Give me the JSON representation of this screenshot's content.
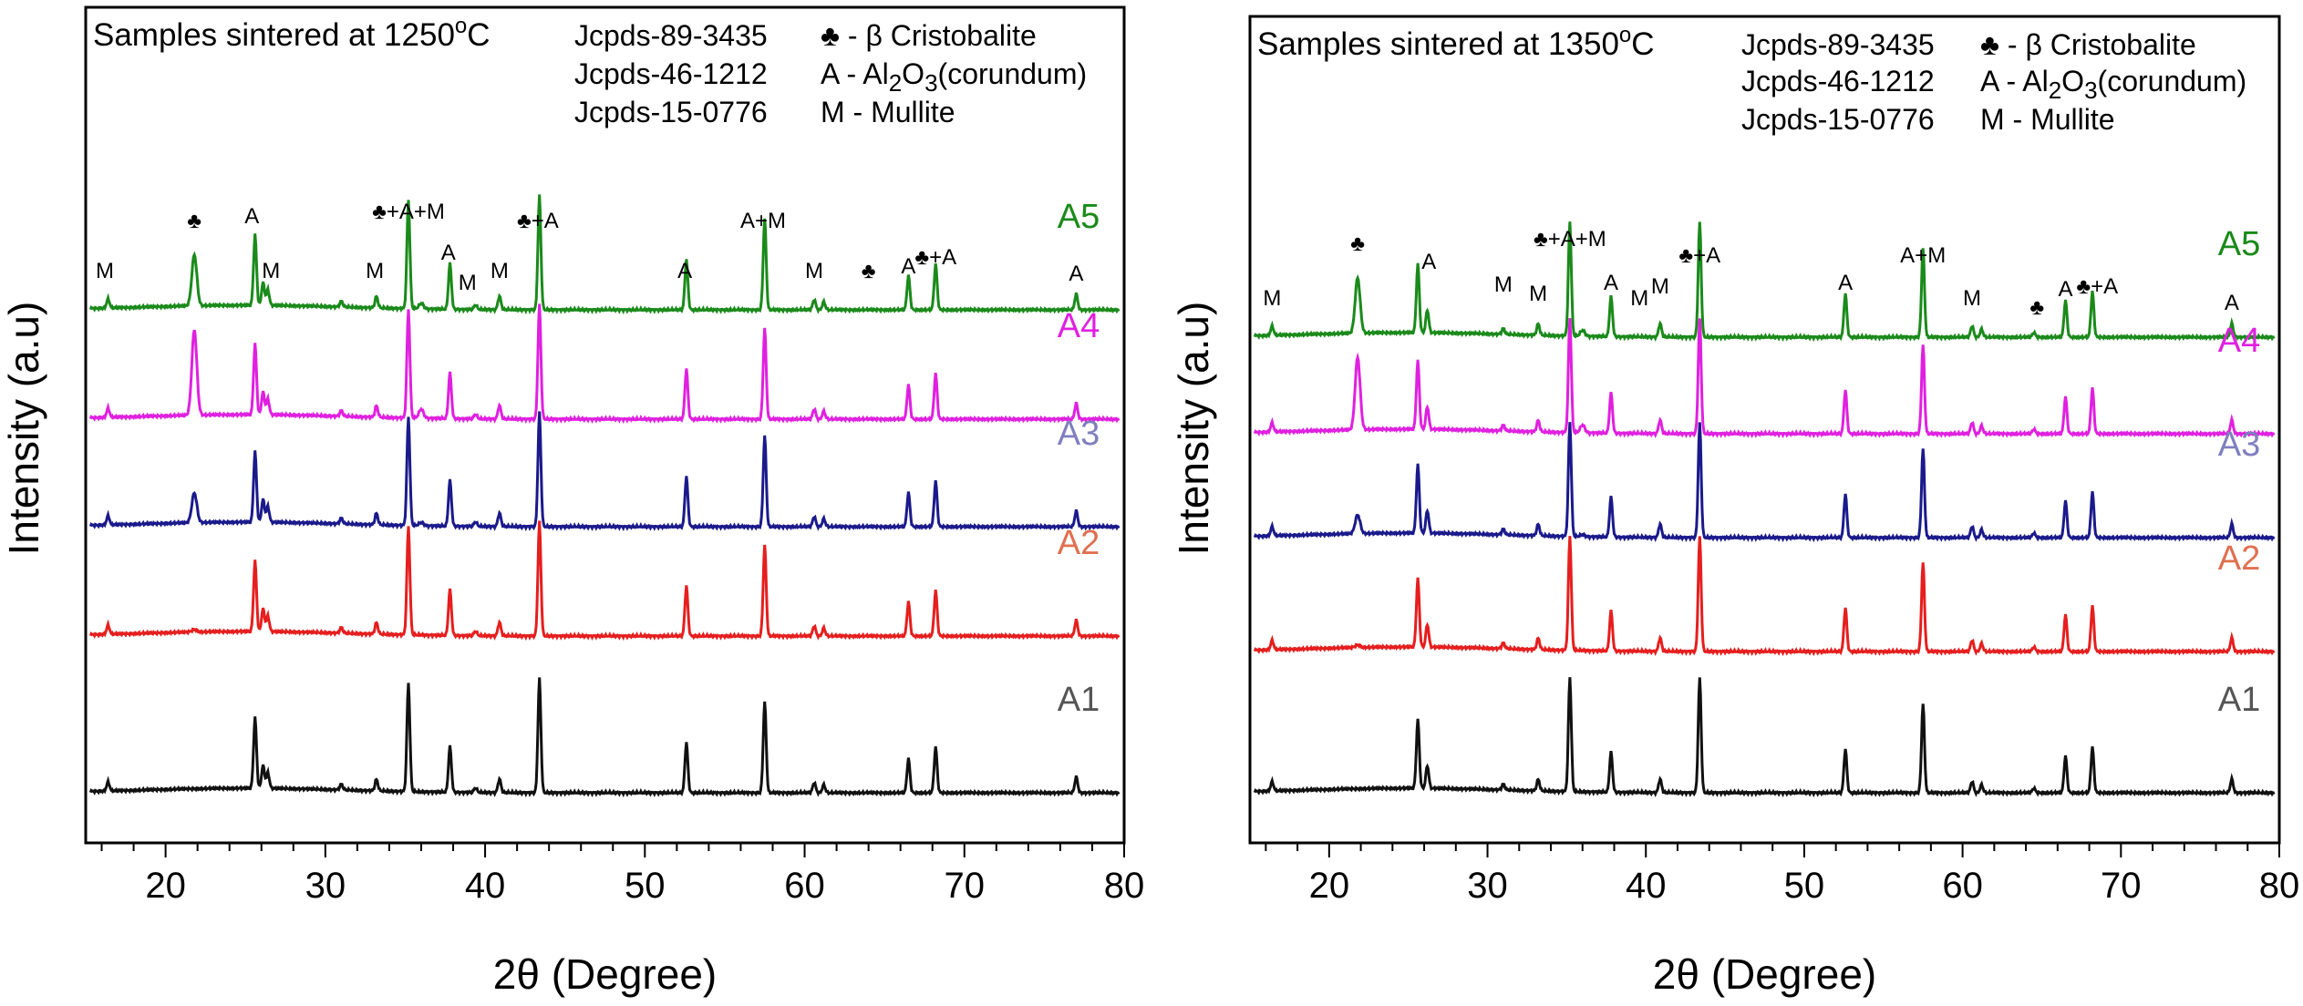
{
  "chart_data": [
    {
      "type": "line",
      "title": "Samples sintered at 1250",
      "title_sup": "o",
      "title_unit": "C",
      "xlabel": "2θ (Degree)",
      "ylabel": "Intensity (a.u)",
      "xlim": [
        15,
        80
      ],
      "xticks": [
        "20",
        "30",
        "40",
        "50",
        "60",
        "70",
        "80"
      ],
      "legend": [
        {
          "ref": "Jcpds-89-3435",
          "sym": "♣",
          "desc": " - β Cristobalite"
        },
        {
          "ref": "Jcpds-46-1212",
          "sym": "A",
          "desc": " - Al2O3(corundum)"
        },
        {
          "ref": "Jcpds-15-0776",
          "sym": "M",
          "desc": " - Mullite"
        }
      ],
      "phase_labels": [
        {
          "text": "M",
          "x": 16.2
        },
        {
          "text": "♣",
          "x": 21.8
        },
        {
          "text": "A",
          "x": 25.4
        },
        {
          "text": "M",
          "x": 26.6
        },
        {
          "text": "M",
          "x": 33.1
        },
        {
          "text": "♣+A+M",
          "x": 35.2
        },
        {
          "text": "A",
          "x": 37.7
        },
        {
          "text": "M",
          "x": 38.9
        },
        {
          "text": "M",
          "x": 40.9
        },
        {
          "text": "♣+A",
          "x": 43.3
        },
        {
          "text": "A",
          "x": 52.5
        },
        {
          "text": "A+M",
          "x": 57.4
        },
        {
          "text": "M",
          "x": 60.6
        },
        {
          "text": "♣",
          "x": 64.0
        },
        {
          "text": "A",
          "x": 66.5
        },
        {
          "text": "♣+A",
          "x": 68.2
        },
        {
          "text": "A",
          "x": 77.0
        }
      ],
      "series": [
        {
          "name": "A5",
          "color": "#1a8a1a",
          "cristobalite": 0.6
        },
        {
          "name": "A4",
          "color": "#e020e0",
          "cristobalite": 1.0
        },
        {
          "name": "A3",
          "color": "#1a1a8c",
          "cristobalite": 0.35
        },
        {
          "name": "A2",
          "color": "#e61e1e",
          "cristobalite": 0.03
        },
        {
          "name": "A1",
          "color": "#111111",
          "cristobalite": 0.0
        }
      ],
      "series_label_colors": [
        "#1a8a1a",
        "#e020e0",
        "#7f7fbf",
        "#e07050",
        "#555555"
      ],
      "peaks": [
        {
          "x": 16.4,
          "h": 8,
          "type": "M"
        },
        {
          "x": 25.6,
          "h": 62,
          "type": "A"
        },
        {
          "x": 26.1,
          "h": 20,
          "type": "M"
        },
        {
          "x": 26.4,
          "h": 14,
          "type": "M"
        },
        {
          "x": 31.0,
          "h": 5,
          "type": "M"
        },
        {
          "x": 33.2,
          "h": 10,
          "type": "M"
        },
        {
          "x": 35.2,
          "h": 95,
          "type": "A"
        },
        {
          "x": 37.8,
          "h": 40,
          "type": "A"
        },
        {
          "x": 39.4,
          "h": 4,
          "type": "M"
        },
        {
          "x": 40.9,
          "h": 12,
          "type": "M"
        },
        {
          "x": 43.4,
          "h": 100,
          "type": "A"
        },
        {
          "x": 52.6,
          "h": 44,
          "type": "A"
        },
        {
          "x": 57.5,
          "h": 80,
          "type": "A"
        },
        {
          "x": 60.6,
          "h": 9,
          "type": "M"
        },
        {
          "x": 61.2,
          "h": 7,
          "type": "M"
        },
        {
          "x": 66.5,
          "h": 30,
          "type": "A"
        },
        {
          "x": 68.2,
          "h": 40,
          "type": "A"
        },
        {
          "x": 77.0,
          "h": 14,
          "type": "A"
        }
      ]
    },
    {
      "type": "line",
      "title": "Samples sintered at 1350",
      "title_sup": "o",
      "title_unit": "C",
      "xlabel": "2θ (Degree)",
      "ylabel": "Intensity (a.u)",
      "xlim": [
        15,
        80
      ],
      "xticks": [
        "20",
        "30",
        "40",
        "50",
        "60",
        "70",
        "80"
      ],
      "legend": [
        {
          "ref": "Jcpds-89-3435",
          "sym": "♣",
          "desc": " - β Cristobalite"
        },
        {
          "ref": "Jcpds-46-1212",
          "sym": "A",
          "desc": " - Al2O3(corundum)"
        },
        {
          "ref": "Jcpds-15-0776",
          "sym": "M",
          "desc": " - Mullite"
        }
      ],
      "phase_labels": [
        {
          "text": "M",
          "x": 16.4
        },
        {
          "text": "♣",
          "x": 21.8
        },
        {
          "text": "A",
          "x": 26.3
        },
        {
          "text": "M",
          "x": 31.0
        },
        {
          "text": "M",
          "x": 33.2
        },
        {
          "text": "♣+A+M",
          "x": 35.2
        },
        {
          "text": "A",
          "x": 37.8
        },
        {
          "text": "M",
          "x": 39.6
        },
        {
          "text": "M",
          "x": 40.9
        },
        {
          "text": "♣+A",
          "x": 43.4
        },
        {
          "text": "A",
          "x": 52.6
        },
        {
          "text": "A+M",
          "x": 57.5
        },
        {
          "text": "M",
          "x": 60.6
        },
        {
          "text": "♣",
          "x": 64.7
        },
        {
          "text": "A",
          "x": 66.5
        },
        {
          "text": "♣+A",
          "x": 68.5
        },
        {
          "text": "A",
          "x": 77.0
        }
      ],
      "series": [
        {
          "name": "A5",
          "color": "#1a8a1a",
          "cristobalite": 0.65
        },
        {
          "name": "A4",
          "color": "#e020e0",
          "cristobalite": 0.85
        },
        {
          "name": "A3",
          "color": "#1a1a8c",
          "cristobalite": 0.22
        },
        {
          "name": "A2",
          "color": "#e61e1e",
          "cristobalite": 0.03
        },
        {
          "name": "A1",
          "color": "#111111",
          "cristobalite": 0.0
        }
      ],
      "series_label_colors": [
        "#1a8a1a",
        "#e020e0",
        "#7f7fbf",
        "#e07050",
        "#555555"
      ],
      "peaks": [
        {
          "x": 16.4,
          "h": 8,
          "type": "M"
        },
        {
          "x": 25.6,
          "h": 60,
          "type": "A"
        },
        {
          "x": 26.2,
          "h": 20,
          "type": "M"
        },
        {
          "x": 31.0,
          "h": 5,
          "type": "M"
        },
        {
          "x": 33.2,
          "h": 10,
          "type": "M"
        },
        {
          "x": 35.2,
          "h": 100,
          "type": "A"
        },
        {
          "x": 37.8,
          "h": 35,
          "type": "A"
        },
        {
          "x": 40.9,
          "h": 12,
          "type": "M"
        },
        {
          "x": 43.4,
          "h": 100,
          "type": "A"
        },
        {
          "x": 52.6,
          "h": 38,
          "type": "A"
        },
        {
          "x": 57.5,
          "h": 78,
          "type": "A"
        },
        {
          "x": 60.6,
          "h": 10,
          "type": "M"
        },
        {
          "x": 61.2,
          "h": 7,
          "type": "M"
        },
        {
          "x": 64.5,
          "h": 4,
          "type": "M"
        },
        {
          "x": 66.5,
          "h": 32,
          "type": "A"
        },
        {
          "x": 68.2,
          "h": 40,
          "type": "A"
        },
        {
          "x": 77.0,
          "h": 12,
          "type": "A"
        }
      ]
    }
  ]
}
